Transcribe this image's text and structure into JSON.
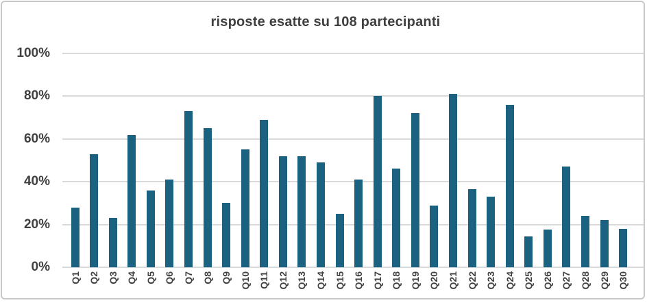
{
  "chart_data": {
    "type": "bar",
    "title": "risposte esatte su 108 partecipanti",
    "categories": [
      "Q1",
      "Q2",
      "Q3",
      "Q4",
      "Q5",
      "Q6",
      "Q7",
      "Q8",
      "Q9",
      "Q10",
      "Q11",
      "Q12",
      "Q13",
      "Q14",
      "Q15",
      "Q16",
      "Q17",
      "Q18",
      "Q19",
      "Q20",
      "Q21",
      "Q22",
      "Q23",
      "Q24",
      "Q25",
      "Q26",
      "Q27",
      "Q28",
      "Q29",
      "Q30"
    ],
    "values": [
      28,
      53,
      23,
      62,
      36,
      41,
      73,
      65,
      30,
      55,
      69,
      52,
      52,
      49,
      25,
      41,
      80,
      46,
      72,
      29,
      81,
      36.5,
      33,
      76,
      14.5,
      17.5,
      47,
      24,
      22,
      18
    ],
    "xlabel": "",
    "ylabel": "",
    "ylim": [
      0,
      100
    ],
    "yticks": [
      {
        "label": "100%",
        "value": 100
      },
      {
        "label": "80%",
        "value": 80
      },
      {
        "label": "60%",
        "value": 60
      },
      {
        "label": "40%",
        "value": 40
      },
      {
        "label": "20%",
        "value": 20
      },
      {
        "label": "0%",
        "value": 0
      }
    ],
    "grid": true,
    "legend": "none",
    "bar_color": "#1b6180",
    "gridline_color": "#d9d9d9",
    "label_color": "#3f3f3f",
    "frame_border_color": "#c8c8c8"
  }
}
